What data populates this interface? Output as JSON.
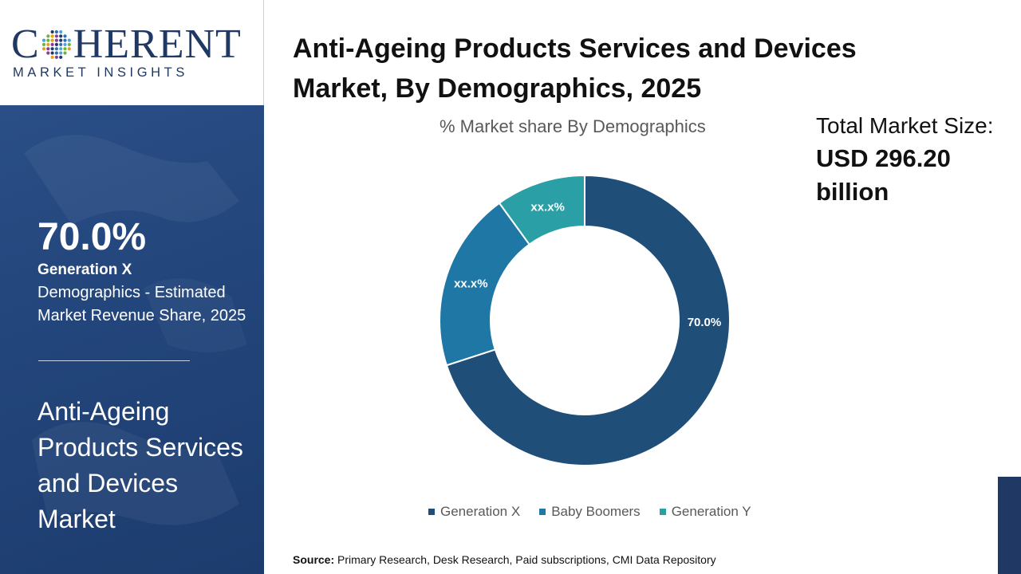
{
  "brand": {
    "name_part1": "C",
    "name_part2": "HERENT",
    "tagline": "MARKET INSIGHTS"
  },
  "left_panel": {
    "stat_value": "70.0%",
    "stat_segment": "Generation X",
    "stat_description": "Demographics - Estimated Market Revenue Share, 2025",
    "market_name": "Anti-Ageing Products Services and Devices Market"
  },
  "title": "Anti-Ageing Products Services and Devices Market, By Demographics, 2025",
  "total_market": {
    "label": "Total Market Size:",
    "value": "USD 296.20 billion"
  },
  "source": {
    "label": "Source:",
    "text": " Primary Research, Desk Research, Paid subscriptions, CMI Data Repository"
  },
  "colors": {
    "brand_navy": "#1f3864",
    "panel_blue": "#22457b",
    "generation_x": "#1f4e79",
    "baby_boomers": "#1f77a6",
    "generation_y": "#2aa0a6"
  },
  "chart_data": {
    "type": "pie",
    "style": "donut",
    "title": "% Market share By Demographics",
    "legend_position": "bottom",
    "categories": [
      "Generation X",
      "Baby Boomers",
      "Generation Y"
    ],
    "values": [
      70.0,
      20.0,
      10.0
    ],
    "labels": [
      "70.0%",
      "xx.x%",
      "xx.x%"
    ],
    "colors": [
      "#1f4e79",
      "#1f77a6",
      "#2aa0a6"
    ]
  }
}
